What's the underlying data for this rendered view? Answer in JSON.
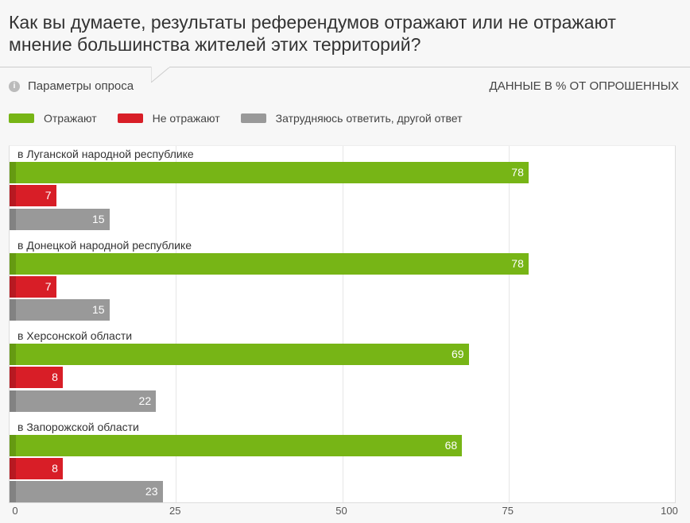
{
  "title": "Как вы думаете, результаты референдумов отражают или не отражают мнение большинства жителей этих территорий?",
  "params_label": "Параметры опроса",
  "info_icon": "i",
  "units_label": "ДАННЫЕ В % ОТ ОПРОШЕННЫХ",
  "chart_data": {
    "type": "bar",
    "orientation": "horizontal",
    "categories": [
      "в Луганской народной республике",
      "в Донецкой народной республике",
      "в Херсонской области",
      "в Запорожской области"
    ],
    "series": [
      {
        "name": "Отражают",
        "color": "#77b516",
        "values": [
          78,
          78,
          69,
          68
        ]
      },
      {
        "name": "Не отражают",
        "color": "#d81e27",
        "values": [
          7,
          7,
          8,
          8
        ]
      },
      {
        "name": "Затрудняюсь ответить, другой ответ",
        "color": "#999999",
        "values": [
          15,
          15,
          22,
          23
        ]
      }
    ],
    "xlim": [
      0,
      100
    ],
    "xticks": [
      "0",
      "25",
      "50",
      "75",
      "100"
    ],
    "grid": true,
    "legend": "top-left"
  }
}
